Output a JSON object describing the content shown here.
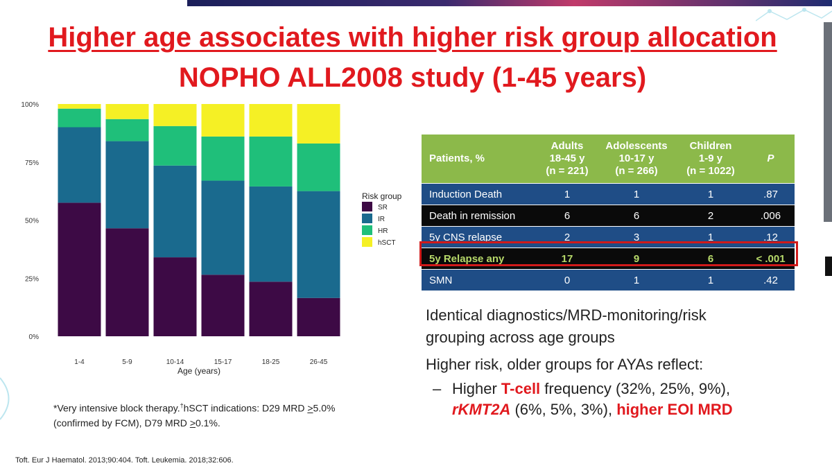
{
  "slide": {
    "title": "Higher age associates with higher risk group allocation",
    "subtitle": "NOPHO ALL2008 study (1-45 years)"
  },
  "chart_data": {
    "type": "bar",
    "stacked": true,
    "categories": [
      "1-4",
      "5-9",
      "10-14",
      "15-17",
      "18-25",
      "26-45"
    ],
    "series": [
      {
        "name": "SR",
        "color": "#3d0a45",
        "values": [
          57.5,
          46.5,
          34,
          26.5,
          23.5,
          16.5
        ]
      },
      {
        "name": "IR",
        "color": "#1a6a8e",
        "values": [
          32.5,
          37.5,
          39.5,
          40.5,
          41,
          46
        ]
      },
      {
        "name": "HR",
        "color": "#1fbf7a",
        "values": [
          8,
          9.5,
          17,
          19,
          21.5,
          20.5
        ]
      },
      {
        "name": "hSCT",
        "color": "#f5f025",
        "values": [
          2,
          6.5,
          9.5,
          14,
          14,
          17
        ]
      }
    ],
    "xlabel": "Age (years)",
    "ylabel": "",
    "yticks": [
      "0%",
      "25%",
      "50%",
      "75%",
      "100%"
    ],
    "ylim": [
      0,
      100
    ],
    "legend_title": "Risk group",
    "legend_position": "right"
  },
  "table": {
    "headers": [
      {
        "line1": "Patients, %",
        "line2": "",
        "line3": ""
      },
      {
        "line1": "Adults",
        "line2": "18-45 y",
        "line3": "(n = 221)"
      },
      {
        "line1": "Adolescents",
        "line2": "10-17 y",
        "line3": "(n = 266)"
      },
      {
        "line1": "Children",
        "line2": "1-9 y",
        "line3": "(n = 1022)"
      },
      {
        "line1": "P",
        "line2": "",
        "line3": ""
      }
    ],
    "rows": [
      {
        "label": "Induction Death",
        "adults": "1",
        "adolescents": "1",
        "children": "1",
        "p": ".87"
      },
      {
        "label": "Death in remission",
        "adults": "6",
        "adolescents": "6",
        "children": "2",
        "p": ".006"
      },
      {
        "label": "5y CNS relapse",
        "adults": "2",
        "adolescents": "3",
        "children": "1",
        "p": ".12"
      },
      {
        "label": "5y Relapse any",
        "adults": "17",
        "adolescents": "9",
        "children": "6",
        "p": "< .001"
      },
      {
        "label": "SMN",
        "adults": "0",
        "adolescents": "1",
        "children": "1",
        "p": ".42"
      }
    ]
  },
  "text": {
    "line1": "Identical diagnostics/MRD-monitoring/risk",
    "line2": "grouping across age groups",
    "line3": "Higher risk, older groups for AYAs reflect:",
    "bullet_dash": "–",
    "b_pre": "Higher ",
    "b_tcell": "T-cell",
    "b_mid": " frequency (32%, 25%, 9%),",
    "b_kmt": "rKMT2A",
    "b_mid2": " (6%, 5%, 3%), ",
    "b_eoi": "higher EOI MRD"
  },
  "footnote": {
    "line1_a": "*Very intensive block therapy.",
    "line1_dagger": "†",
    "line1_b": "hSCT indications: D29 MRD ",
    "line1_ge": ">",
    "line1_c": "5.0%",
    "line2_a": "(confirmed by FCM), D79 MRD ",
    "line2_ge": ">",
    "line2_b": "0.1%."
  },
  "reference": "Toft. Eur J Haematol. 2013;90:404. Toft. Leukemia. 2018;32:606."
}
